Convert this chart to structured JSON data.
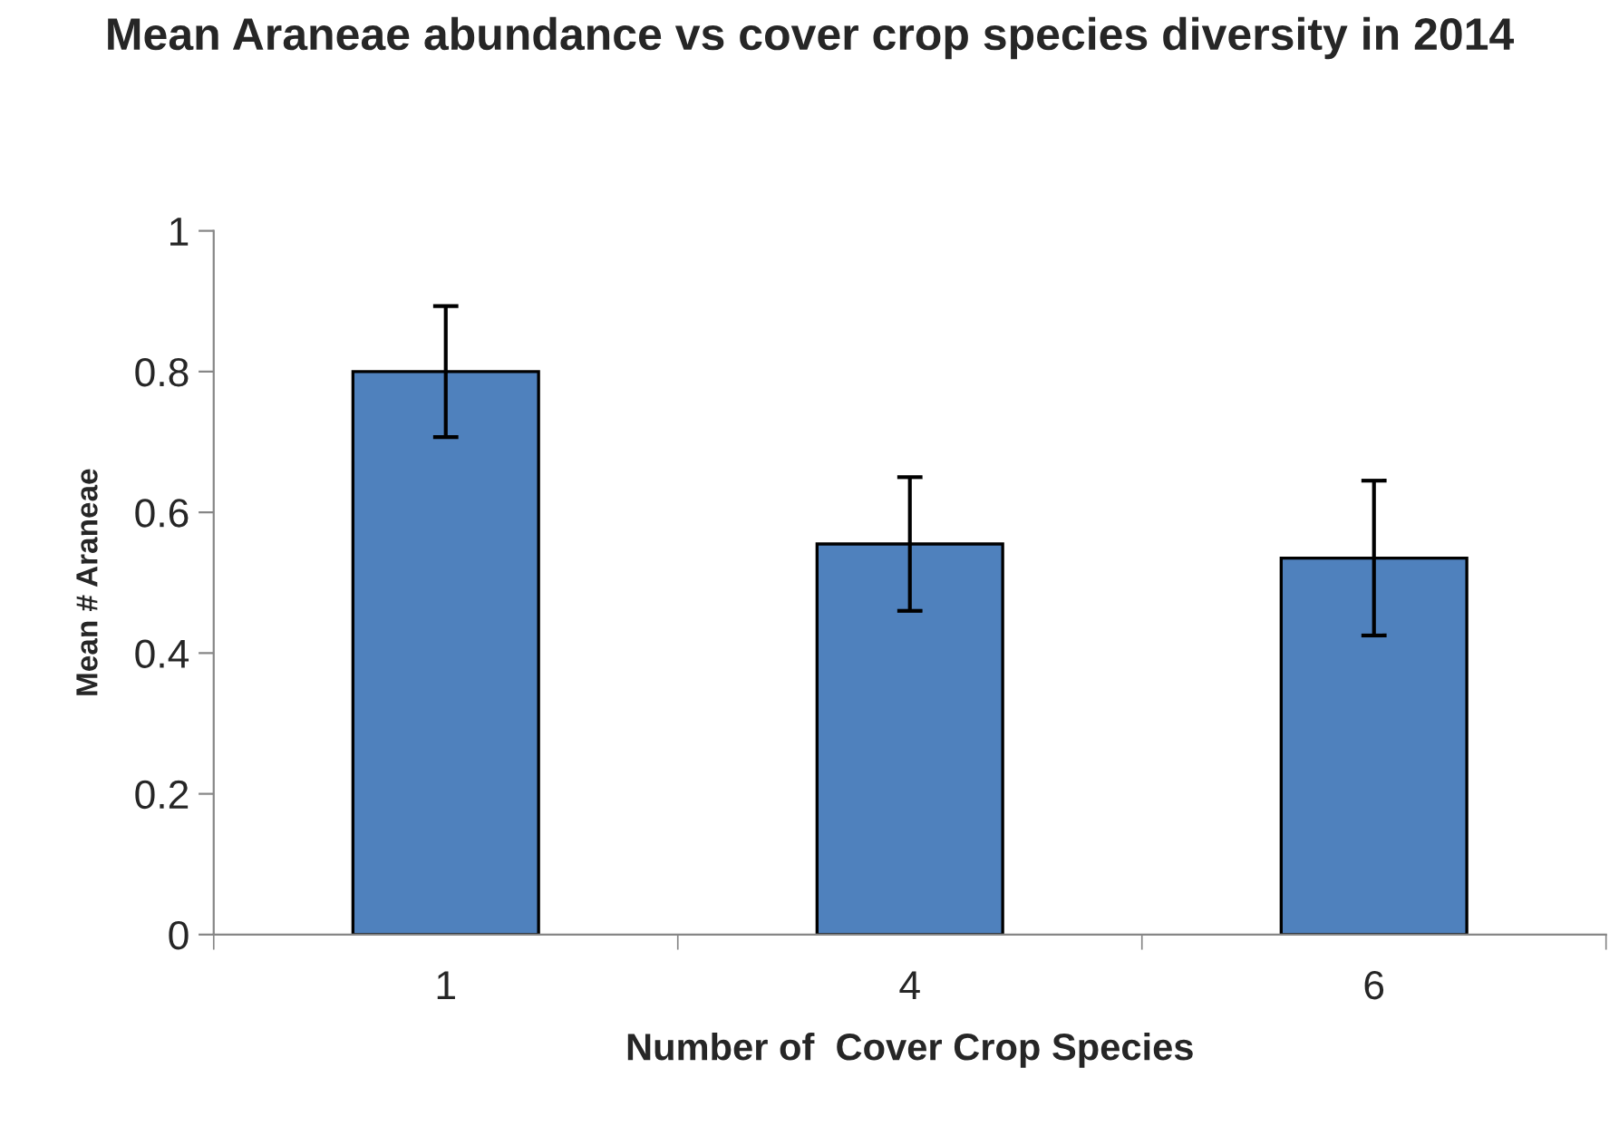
{
  "chart_data": {
    "type": "bar",
    "title": "Mean Araneae abundance vs cover crop species diversity in 2014",
    "xlabel": "Number of  Cover Crop Species",
    "ylabel": "Mean # Araneae",
    "categories": [
      "1",
      "4",
      "6"
    ],
    "series": [
      {
        "color": "#4f81bd",
        "values": [
          0.8,
          0.555,
          0.535
        ],
        "errors": [
          0.093,
          0.095,
          0.11
        ]
      }
    ],
    "ylim": [
      0,
      1
    ],
    "yticks": [
      0,
      0.2,
      0.4,
      0.6,
      0.8,
      1
    ],
    "grid": false,
    "legend": false
  }
}
